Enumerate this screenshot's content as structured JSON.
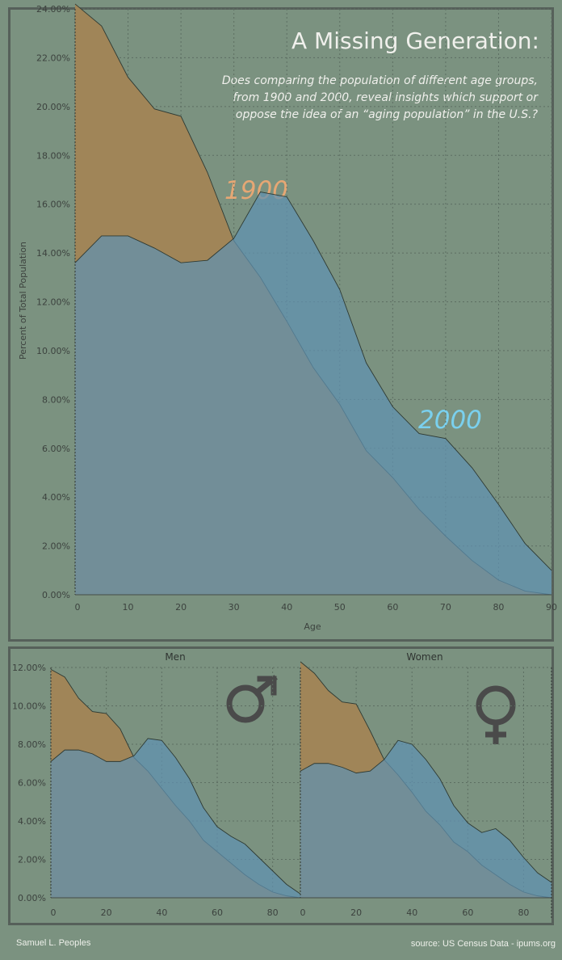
{
  "footer": {
    "author": "Samuel L. Peoples",
    "source": "source: US Census Data - ipums.org"
  },
  "colors": {
    "series_1900": "#a08558",
    "series_2000": "#5f92b2",
    "label_1900": "#e6a774",
    "label_2000": "#7ad0ee",
    "background": "#7b9280"
  },
  "icons": [
    "male-symbol-icon",
    "female-symbol-icon"
  ],
  "chart_data": [
    {
      "type": "area",
      "title": "A Missing Generation:",
      "subtitle_lines": [
        "Does comparing the population of different age groups,",
        "from 1900 and 2000, reveal insights which support or",
        "oppose the idea of an “aging  population” in the U.S.?"
      ],
      "xlabel": "Age",
      "ylabel": "Percent of Total Population",
      "xlim": [
        0,
        90
      ],
      "ylim": [
        0,
        24
      ],
      "x_ticks": [
        0,
        10,
        20,
        30,
        40,
        50,
        60,
        70,
        80,
        90
      ],
      "y_ticks": [
        "0.00%",
        "2.00%",
        "4.00%",
        "6.00%",
        "8.00%",
        "10.00%",
        "12.00%",
        "14.00%",
        "16.00%",
        "18.00%",
        "20.00%",
        "22.00%",
        "24.00%"
      ],
      "grid": true,
      "x": [
        0,
        5,
        10,
        15,
        20,
        25,
        30,
        35,
        40,
        45,
        50,
        55,
        60,
        65,
        70,
        75,
        80,
        85,
        90
      ],
      "series": [
        {
          "name": "1900",
          "values": [
            24.2,
            23.3,
            21.2,
            19.9,
            19.6,
            17.3,
            14.5,
            13.0,
            11.2,
            9.3,
            7.8,
            5.9,
            4.8,
            3.5,
            2.4,
            1.4,
            0.6,
            0.15,
            0.0
          ]
        },
        {
          "name": "2000",
          "values": [
            13.6,
            14.7,
            14.7,
            14.2,
            13.6,
            13.7,
            14.6,
            16.5,
            16.3,
            14.5,
            12.5,
            9.5,
            7.7,
            6.6,
            6.4,
            5.2,
            3.7,
            2.1,
            1.0
          ]
        }
      ]
    },
    {
      "type": "area",
      "facet": "Men",
      "xlim": [
        0,
        90
      ],
      "ylim": [
        0,
        12
      ],
      "x_ticks": [
        0,
        20,
        40,
        60,
        80
      ],
      "y_ticks": [
        "0.00%",
        "2.00%",
        "4.00%",
        "6.00%",
        "8.00%",
        "10.00%",
        "12.00%"
      ],
      "x": [
        0,
        5,
        10,
        15,
        20,
        25,
        30,
        35,
        40,
        45,
        50,
        55,
        60,
        65,
        70,
        75,
        80,
        85,
        90
      ],
      "series": [
        {
          "name": "1900",
          "values": [
            11.9,
            11.5,
            10.4,
            9.7,
            9.6,
            8.8,
            7.3,
            6.6,
            5.7,
            4.8,
            4.0,
            3.0,
            2.4,
            1.8,
            1.2,
            0.7,
            0.3,
            0.1,
            0.0
          ]
        },
        {
          "name": "2000",
          "values": [
            7.1,
            7.7,
            7.7,
            7.5,
            7.1,
            7.1,
            7.4,
            8.3,
            8.2,
            7.3,
            6.2,
            4.7,
            3.7,
            3.2,
            2.8,
            2.1,
            1.4,
            0.7,
            0.2
          ]
        }
      ]
    },
    {
      "type": "area",
      "facet": "Women",
      "xlim": [
        0,
        90
      ],
      "ylim": [
        0,
        12
      ],
      "x_ticks": [
        0,
        20,
        40,
        60,
        80
      ],
      "y_ticks": [
        "0.00%",
        "2.00%",
        "4.00%",
        "6.00%",
        "8.00%",
        "10.00%",
        "12.00%"
      ],
      "x": [
        0,
        5,
        10,
        15,
        20,
        25,
        30,
        35,
        40,
        45,
        50,
        55,
        60,
        65,
        70,
        75,
        80,
        85,
        90
      ],
      "series": [
        {
          "name": "1900",
          "values": [
            12.3,
            11.7,
            10.8,
            10.2,
            10.1,
            8.7,
            7.2,
            6.4,
            5.5,
            4.5,
            3.8,
            2.9,
            2.4,
            1.7,
            1.2,
            0.7,
            0.3,
            0.1,
            0.0
          ]
        },
        {
          "name": "2000",
          "values": [
            6.6,
            7.0,
            7.0,
            6.8,
            6.5,
            6.6,
            7.2,
            8.2,
            8.0,
            7.2,
            6.2,
            4.8,
            3.9,
            3.4,
            3.6,
            3.0,
            2.1,
            1.3,
            0.8
          ]
        }
      ]
    }
  ]
}
